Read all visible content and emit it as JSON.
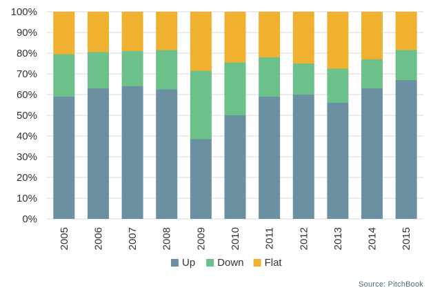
{
  "chart_data": {
    "type": "bar",
    "stacked": true,
    "categories": [
      "2005",
      "2006",
      "2007",
      "2008",
      "2009",
      "2010",
      "2011",
      "2012",
      "2013",
      "2014",
      "2015"
    ],
    "series": [
      {
        "name": "Up",
        "color": "#6b90a2",
        "values": [
          59,
          63,
          64,
          62.5,
          38.5,
          50,
          59,
          60,
          56,
          63,
          67
        ]
      },
      {
        "name": "Down",
        "color": "#6cc08a",
        "values": [
          20.5,
          17.5,
          17,
          19,
          33,
          25.5,
          19,
          15,
          16.5,
          14,
          14.5
        ]
      },
      {
        "name": "Flat",
        "color": "#f0b030",
        "values": [
          20.5,
          19.5,
          19,
          18.5,
          28.5,
          24.5,
          22,
          25,
          27.5,
          23,
          18.5
        ]
      }
    ],
    "ylim": [
      0,
      100
    ],
    "yticks": [
      "0%",
      "10%",
      "20%",
      "30%",
      "40%",
      "50%",
      "60%",
      "70%",
      "80%",
      "90%",
      "100%"
    ],
    "grid": true,
    "legend_position": "bottom",
    "source": "Source: PitchBook"
  }
}
